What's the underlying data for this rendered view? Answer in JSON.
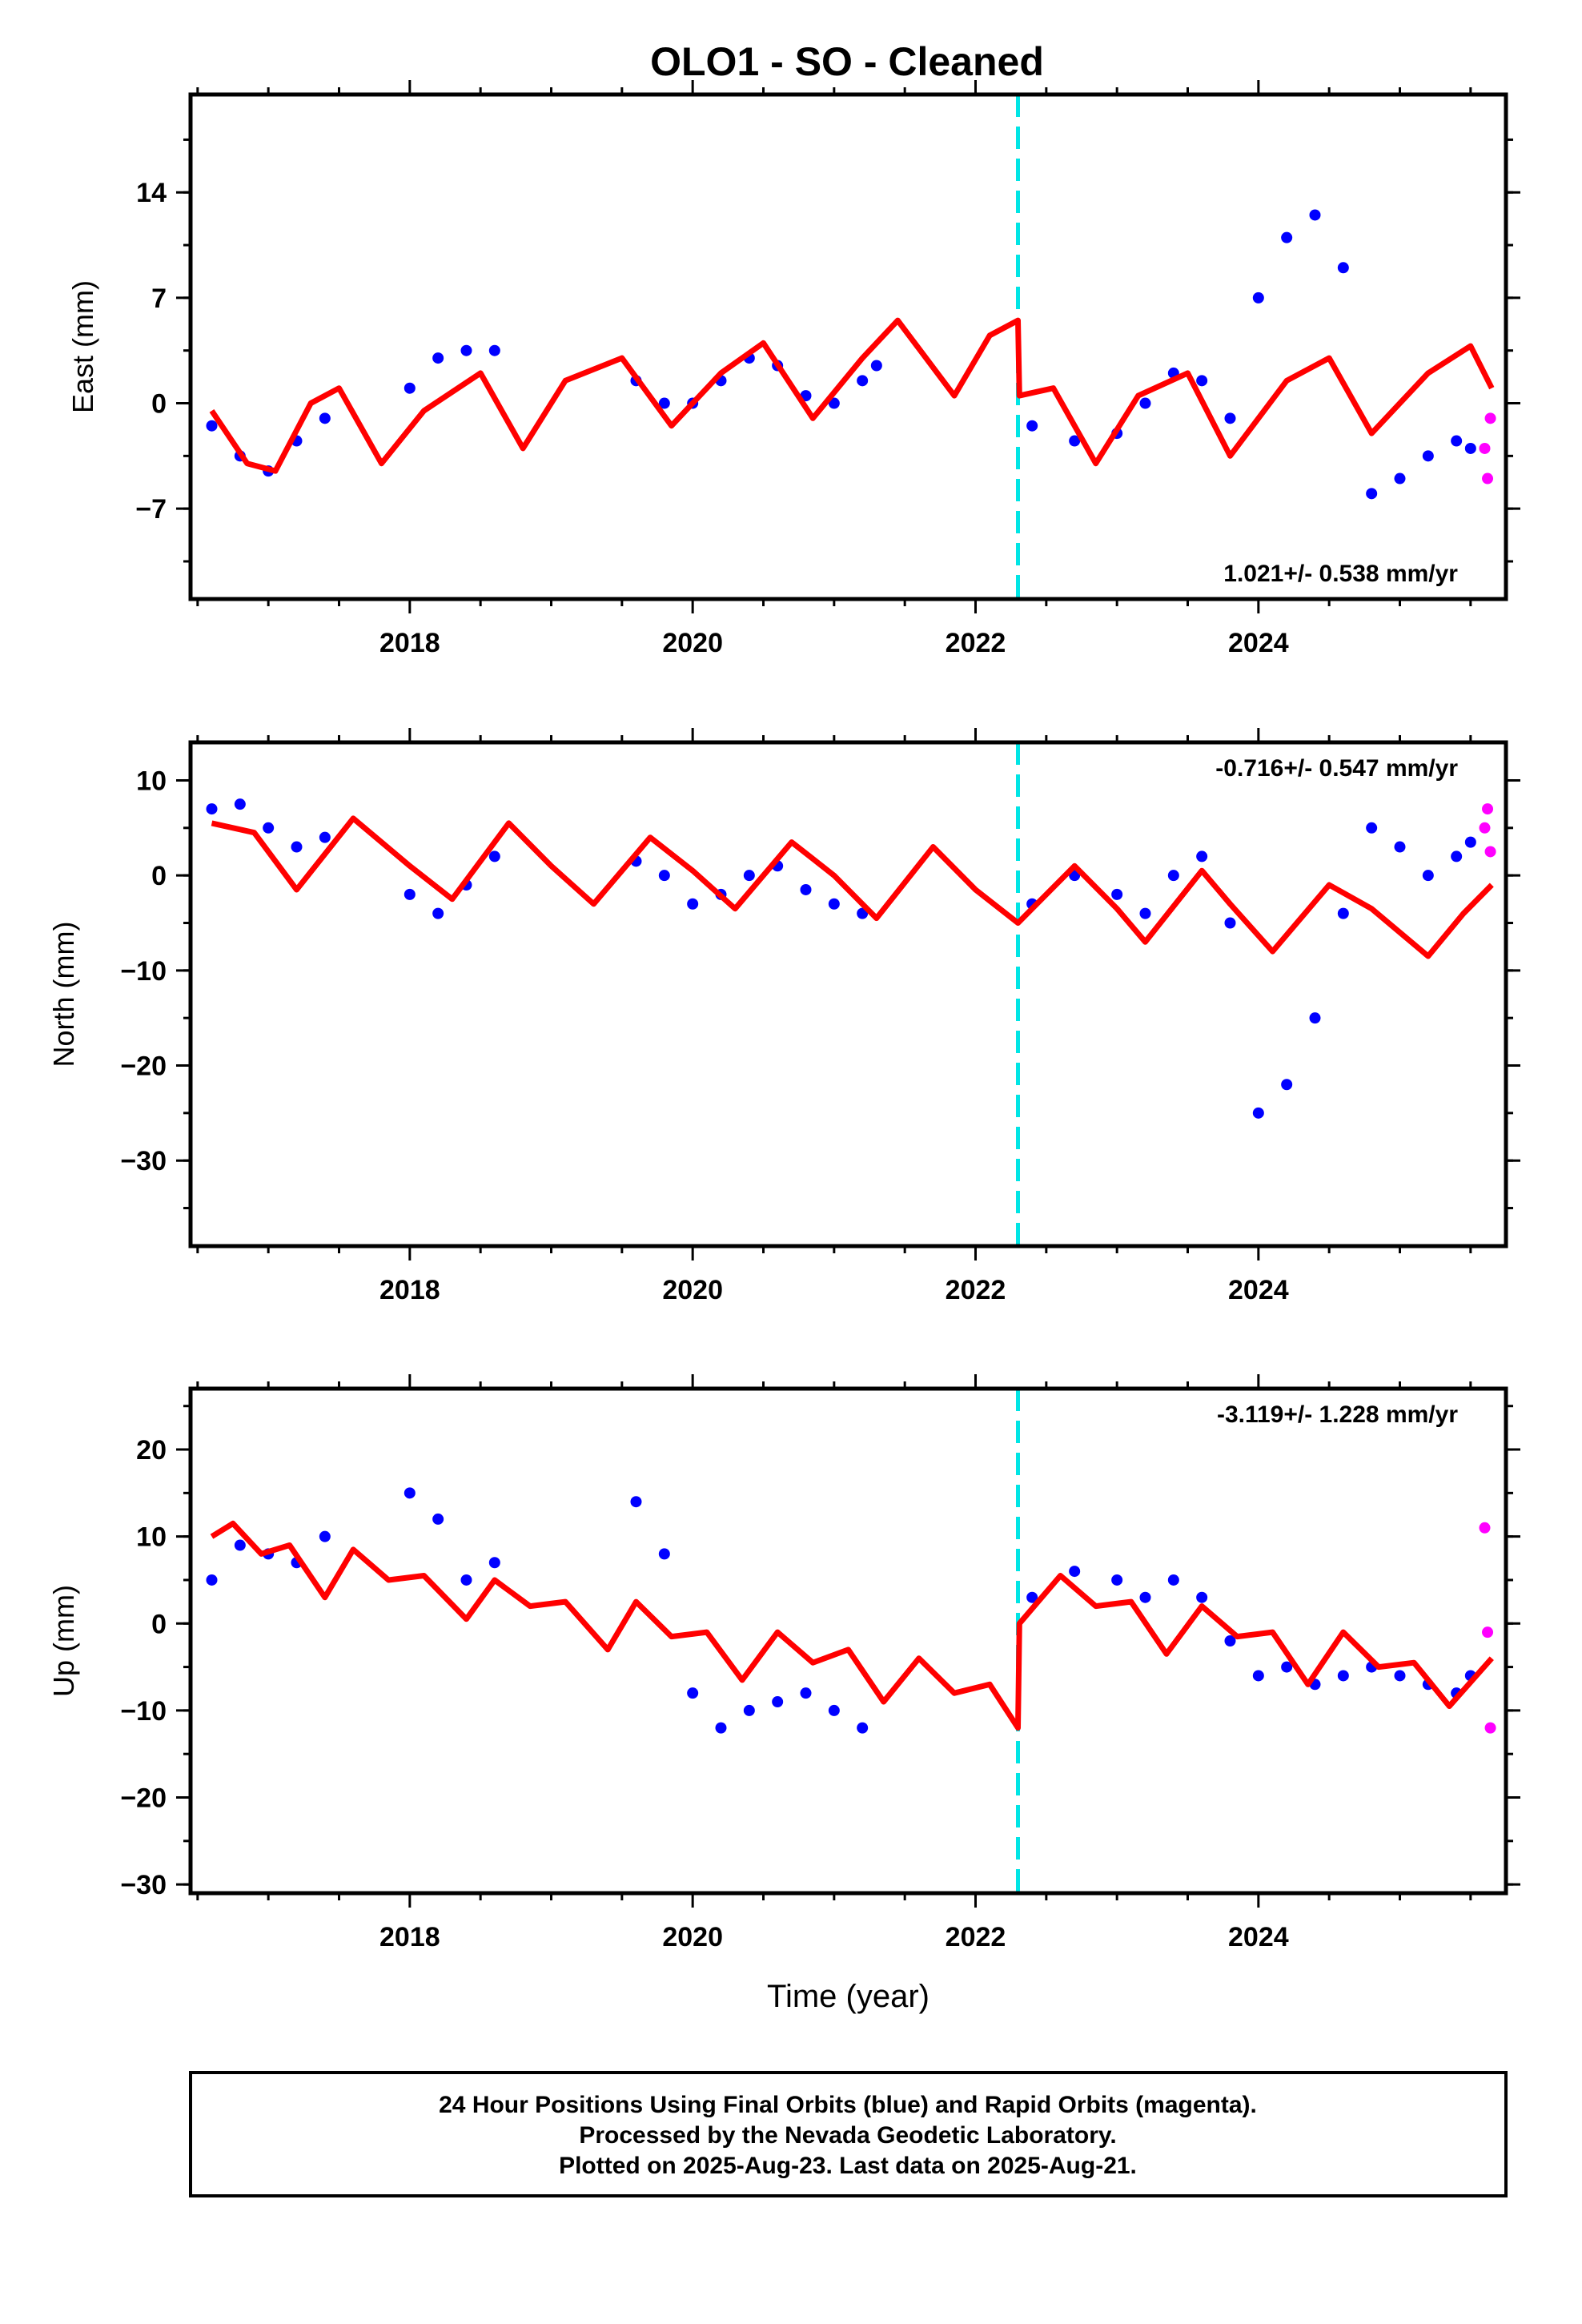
{
  "title": "OLO1  - SO - Cleaned",
  "colors": {
    "final_orbits": "#0000ff",
    "rapid_orbits": "#ff00ff",
    "model": "#ff0000",
    "event_line": "#00e5e5",
    "frame": "#000000"
  },
  "footer": {
    "line1": "24 Hour Positions Using Final Orbits (blue) and Rapid Orbits (magenta).",
    "line2": "Processed by the Nevada Geodetic Laboratory.",
    "line3": "Plotted on 2025-Aug-23. Last data on 2025-Aug-21."
  },
  "chart_data": [
    {
      "type": "scatter",
      "component": "East",
      "ylabel": "East (mm)",
      "xlabel": "",
      "rate_label": "1.021+/- 0.538 mm/yr",
      "xlim": [
        2016.45,
        2025.75
      ],
      "ylim": [
        -13,
        20.5
      ],
      "x_ticks": [
        2018,
        2020,
        2022,
        2024
      ],
      "y_ticks": [
        14,
        7,
        0,
        -7
      ],
      "event_line_x": 2022.3,
      "grid": false,
      "data_points_final": [
        [
          2016.6,
          -1.5
        ],
        [
          2016.8,
          -3.5
        ],
        [
          2017.0,
          -4.5
        ],
        [
          2017.2,
          -2.5
        ],
        [
          2017.4,
          -1.0
        ],
        [
          2018.0,
          1.0
        ],
        [
          2018.2,
          3.0
        ],
        [
          2018.4,
          3.5
        ],
        [
          2018.6,
          3.5
        ],
        [
          2019.6,
          1.5
        ],
        [
          2019.8,
          0.0
        ],
        [
          2020.0,
          0.0
        ],
        [
          2020.2,
          1.5
        ],
        [
          2020.4,
          3.0
        ],
        [
          2020.6,
          2.5
        ],
        [
          2020.8,
          0.5
        ],
        [
          2021.0,
          0.0
        ],
        [
          2021.2,
          1.5
        ],
        [
          2021.3,
          2.5
        ],
        [
          2022.4,
          -1.5
        ],
        [
          2022.7,
          -2.5
        ],
        [
          2023.0,
          -2.0
        ],
        [
          2023.2,
          0.0
        ],
        [
          2023.4,
          2.0
        ],
        [
          2023.6,
          1.5
        ],
        [
          2023.8,
          -1.0
        ],
        [
          2024.0,
          7.0
        ],
        [
          2024.2,
          11.0
        ],
        [
          2024.4,
          12.5
        ],
        [
          2024.6,
          9.0
        ],
        [
          2024.8,
          -6.0
        ],
        [
          2025.0,
          -5.0
        ],
        [
          2025.2,
          -3.5
        ],
        [
          2025.4,
          -2.5
        ],
        [
          2025.5,
          -3.0
        ]
      ],
      "data_points_rapid": [
        [
          2025.6,
          -3.0
        ],
        [
          2025.62,
          -5.0
        ],
        [
          2025.64,
          -1.0
        ]
      ],
      "model_line": [
        [
          2016.6,
          -0.5
        ],
        [
          2016.85,
          -4.0
        ],
        [
          2017.05,
          -4.5
        ],
        [
          2017.3,
          0.0
        ],
        [
          2017.5,
          1.0
        ],
        [
          2017.8,
          -4.0
        ],
        [
          2018.1,
          -0.5
        ],
        [
          2018.5,
          2.0
        ],
        [
          2018.8,
          -3.0
        ],
        [
          2019.1,
          1.5
        ],
        [
          2019.5,
          3.0
        ],
        [
          2019.85,
          -1.5
        ],
        [
          2020.2,
          2.0
        ],
        [
          2020.5,
          4.0
        ],
        [
          2020.85,
          -1.0
        ],
        [
          2021.2,
          3.0
        ],
        [
          2021.45,
          5.5
        ],
        [
          2021.85,
          0.5
        ],
        [
          2022.1,
          4.5
        ],
        [
          2022.3,
          5.5
        ],
        [
          2022.31,
          0.5
        ],
        [
          2022.55,
          1.0
        ],
        [
          2022.85,
          -4.0
        ],
        [
          2023.15,
          0.5
        ],
        [
          2023.5,
          2.0
        ],
        [
          2023.8,
          -3.5
        ],
        [
          2024.2,
          1.5
        ],
        [
          2024.5,
          3.0
        ],
        [
          2024.8,
          -2.0
        ],
        [
          2025.2,
          2.0
        ],
        [
          2025.5,
          3.8
        ],
        [
          2025.65,
          1.0
        ]
      ]
    },
    {
      "type": "scatter",
      "component": "North",
      "ylabel": "North (mm)",
      "xlabel": "",
      "rate_label": "-0.716+/- 0.547 mm/yr",
      "xlim": [
        2016.45,
        2025.75
      ],
      "ylim": [
        -39,
        14
      ],
      "x_ticks": [
        2018,
        2020,
        2022,
        2024
      ],
      "y_ticks": [
        10,
        0,
        -10,
        -20,
        -30
      ],
      "event_line_x": 2022.3,
      "grid": false,
      "data_points_final": [
        [
          2016.6,
          7.0
        ],
        [
          2016.8,
          7.5
        ],
        [
          2017.0,
          5.0
        ],
        [
          2017.2,
          3.0
        ],
        [
          2017.4,
          4.0
        ],
        [
          2018.0,
          -2.0
        ],
        [
          2018.2,
          -4.0
        ],
        [
          2018.4,
          -1.0
        ],
        [
          2018.6,
          2.0
        ],
        [
          2019.6,
          1.5
        ],
        [
          2019.8,
          0.0
        ],
        [
          2020.0,
          -3.0
        ],
        [
          2020.2,
          -2.0
        ],
        [
          2020.4,
          0.0
        ],
        [
          2020.6,
          1.0
        ],
        [
          2020.8,
          -1.5
        ],
        [
          2021.0,
          -3.0
        ],
        [
          2021.2,
          -4.0
        ],
        [
          2022.4,
          -3.0
        ],
        [
          2022.7,
          0.0
        ],
        [
          2023.0,
          -2.0
        ],
        [
          2023.2,
          -4.0
        ],
        [
          2023.4,
          0.0
        ],
        [
          2023.6,
          2.0
        ],
        [
          2023.8,
          -5.0
        ],
        [
          2024.0,
          -25.0
        ],
        [
          2024.2,
          -22.0
        ],
        [
          2024.4,
          -15.0
        ],
        [
          2024.6,
          -4.0
        ],
        [
          2024.8,
          5.0
        ],
        [
          2025.0,
          3.0
        ],
        [
          2025.2,
          0.0
        ],
        [
          2025.4,
          2.0
        ],
        [
          2025.5,
          3.5
        ]
      ],
      "data_points_rapid": [
        [
          2025.6,
          5.0
        ],
        [
          2025.62,
          7.0
        ],
        [
          2025.64,
          2.5
        ]
      ],
      "model_line": [
        [
          2016.6,
          5.5
        ],
        [
          2016.9,
          4.5
        ],
        [
          2017.2,
          -1.5
        ],
        [
          2017.6,
          6.0
        ],
        [
          2018.0,
          1.0
        ],
        [
          2018.3,
          -2.5
        ],
        [
          2018.7,
          5.5
        ],
        [
          2019.0,
          1.0
        ],
        [
          2019.3,
          -3.0
        ],
        [
          2019.7,
          4.0
        ],
        [
          2020.0,
          0.5
        ],
        [
          2020.3,
          -3.5
        ],
        [
          2020.7,
          3.5
        ],
        [
          2021.0,
          0.0
        ],
        [
          2021.3,
          -4.5
        ],
        [
          2021.7,
          3.0
        ],
        [
          2022.0,
          -1.5
        ],
        [
          2022.3,
          -5.0
        ],
        [
          2022.7,
          1.0
        ],
        [
          2023.0,
          -3.5
        ],
        [
          2023.2,
          -7.0
        ],
        [
          2023.6,
          0.5
        ],
        [
          2023.8,
          -3.0
        ],
        [
          2024.1,
          -8.0
        ],
        [
          2024.5,
          -1.0
        ],
        [
          2024.8,
          -3.5
        ],
        [
          2025.2,
          -8.5
        ],
        [
          2025.45,
          -4.0
        ],
        [
          2025.65,
          -1.0
        ]
      ]
    },
    {
      "type": "scatter",
      "component": "Up",
      "ylabel": "Up (mm)",
      "xlabel": "Time (year)",
      "rate_label": "-3.119+/- 1.228 mm/yr",
      "xlim": [
        2016.45,
        2025.75
      ],
      "ylim": [
        -31,
        27
      ],
      "x_ticks": [
        2018,
        2020,
        2022,
        2024
      ],
      "y_ticks": [
        20,
        10,
        0,
        -10,
        -20,
        -30
      ],
      "event_line_x": 2022.3,
      "grid": false,
      "data_points_final": [
        [
          2016.6,
          5.0
        ],
        [
          2016.8,
          9.0
        ],
        [
          2017.0,
          8.0
        ],
        [
          2017.2,
          7.0
        ],
        [
          2017.4,
          10.0
        ],
        [
          2018.0,
          15.0
        ],
        [
          2018.2,
          12.0
        ],
        [
          2018.4,
          5.0
        ],
        [
          2018.6,
          7.0
        ],
        [
          2019.6,
          14.0
        ],
        [
          2019.8,
          8.0
        ],
        [
          2020.0,
          -8.0
        ],
        [
          2020.2,
          -12.0
        ],
        [
          2020.4,
          -10.0
        ],
        [
          2020.6,
          -9.0
        ],
        [
          2020.8,
          -8.0
        ],
        [
          2021.0,
          -10.0
        ],
        [
          2021.2,
          -12.0
        ],
        [
          2022.4,
          3.0
        ],
        [
          2022.7,
          6.0
        ],
        [
          2023.0,
          5.0
        ],
        [
          2023.2,
          3.0
        ],
        [
          2023.4,
          5.0
        ],
        [
          2023.6,
          3.0
        ],
        [
          2023.8,
          -2.0
        ],
        [
          2024.0,
          -6.0
        ],
        [
          2024.2,
          -5.0
        ],
        [
          2024.4,
          -7.0
        ],
        [
          2024.6,
          -6.0
        ],
        [
          2024.8,
          -5.0
        ],
        [
          2025.0,
          -6.0
        ],
        [
          2025.2,
          -7.0
        ],
        [
          2025.4,
          -8.0
        ],
        [
          2025.5,
          -6.0
        ]
      ],
      "data_points_rapid": [
        [
          2025.6,
          11.0
        ],
        [
          2025.62,
          -1.0
        ],
        [
          2025.64,
          -12.0
        ]
      ],
      "model_line": [
        [
          2016.6,
          10.0
        ],
        [
          2016.75,
          11.5
        ],
        [
          2016.95,
          8.0
        ],
        [
          2017.15,
          9.0
        ],
        [
          2017.4,
          3.0
        ],
        [
          2017.6,
          8.5
        ],
        [
          2017.85,
          5.0
        ],
        [
          2018.1,
          5.5
        ],
        [
          2018.4,
          0.5
        ],
        [
          2018.6,
          5.0
        ],
        [
          2018.85,
          2.0
        ],
        [
          2019.1,
          2.5
        ],
        [
          2019.4,
          -3.0
        ],
        [
          2019.6,
          2.5
        ],
        [
          2019.85,
          -1.5
        ],
        [
          2020.1,
          -1.0
        ],
        [
          2020.35,
          -6.5
        ],
        [
          2020.6,
          -1.0
        ],
        [
          2020.85,
          -4.5
        ],
        [
          2021.1,
          -3.0
        ],
        [
          2021.35,
          -9.0
        ],
        [
          2021.6,
          -4.0
        ],
        [
          2021.85,
          -8.0
        ],
        [
          2022.1,
          -7.0
        ],
        [
          2022.3,
          -12.0
        ],
        [
          2022.31,
          0.0
        ],
        [
          2022.6,
          5.5
        ],
        [
          2022.85,
          2.0
        ],
        [
          2023.1,
          2.5
        ],
        [
          2023.35,
          -3.5
        ],
        [
          2023.6,
          2.0
        ],
        [
          2023.85,
          -1.5
        ],
        [
          2024.1,
          -1.0
        ],
        [
          2024.35,
          -7.0
        ],
        [
          2024.6,
          -1.0
        ],
        [
          2024.85,
          -5.0
        ],
        [
          2025.1,
          -4.5
        ],
        [
          2025.35,
          -9.5
        ],
        [
          2025.65,
          -4.0
        ]
      ]
    }
  ]
}
